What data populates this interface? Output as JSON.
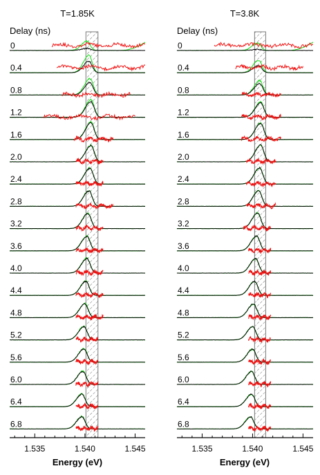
{
  "chart_data": [
    {
      "type": "line",
      "title": "T=1.85K",
      "xlabel": "Energy (eV)",
      "ylabel": "",
      "xlim": [
        1.5325,
        1.546
      ],
      "ylim": [
        0,
        1
      ],
      "x_ticks": [
        "1.535",
        "1.540",
        "1.545"
      ],
      "offset_label": "Delay (ns)",
      "delays": [
        "0",
        "0.4",
        "0.8",
        "1.2",
        "1.6",
        "2.0",
        "2.4",
        "2.8",
        "3.2",
        "3.6",
        "4.0",
        "4.4",
        "4.8",
        "5.2",
        "5.6",
        "6.0",
        "6.4",
        "6.8"
      ],
      "highlight_band": [
        1.5401,
        1.5413
      ],
      "peak_energy": [
        1.5402,
        1.5404,
        1.5405,
        1.5406,
        1.5406,
        1.5406,
        1.5405,
        1.5404,
        1.5403,
        1.5402,
        1.5402,
        1.5401,
        1.54,
        1.5399,
        1.5399,
        1.5398,
        1.5397,
        1.5397
      ],
      "peak_height": [
        0.1,
        0.55,
        0.6,
        0.75,
        0.8,
        0.78,
        0.76,
        0.74,
        0.72,
        0.7,
        0.7,
        0.68,
        0.66,
        0.64,
        0.64,
        0.62,
        0.6,
        0.58
      ],
      "green_height": [
        0.45,
        0.85,
        0.8,
        0.85,
        0.85,
        0.8,
        0.78,
        0.76,
        0.74,
        0.72,
        0.72,
        0.7,
        0.68,
        0.66,
        0.66,
        0.64,
        0.62,
        0.6
      ],
      "red_range": [
        [
          1.5367,
          1.546
        ],
        [
          1.5372,
          1.546
        ],
        [
          1.5377,
          1.5445
        ],
        [
          1.5359,
          1.545
        ],
        [
          1.5389,
          1.5428
        ],
        [
          1.5391,
          1.5418
        ],
        [
          1.5391,
          1.5418
        ],
        [
          1.5391,
          1.5428
        ],
        [
          1.5391,
          1.5418
        ],
        [
          1.5391,
          1.5418
        ],
        [
          1.5391,
          1.5418
        ],
        [
          1.5391,
          1.5418
        ],
        [
          1.5391,
          1.5418
        ],
        [
          1.5391,
          1.5413
        ],
        [
          1.5391,
          1.5413
        ],
        [
          1.5391,
          1.5413
        ],
        [
          1.5391,
          1.5413
        ],
        [
          1.5391,
          1.5413
        ]
      ],
      "series_colors": {
        "black": "#000000",
        "green": "#22dd22",
        "red": "#ee1111"
      }
    },
    {
      "type": "line",
      "title": "T=3.8K",
      "xlabel": "Energy (eV)",
      "ylabel": "",
      "xlim": [
        1.5325,
        1.546
      ],
      "ylim": [
        0,
        1
      ],
      "x_ticks": [
        "1.535",
        "1.540",
        "1.545"
      ],
      "offset_label": "Delay (ns)",
      "delays": [
        "0",
        "0.4",
        "0.8",
        "1.2",
        "1.6",
        "2.0",
        "2.4",
        "2.8",
        "3.2",
        "3.6",
        "4.0",
        "4.4",
        "4.8",
        "5.2",
        "5.6",
        "6.0",
        "6.4",
        "6.8"
      ],
      "highlight_band": [
        1.5402,
        1.5413
      ],
      "peak_energy": [
        1.5405,
        1.5406,
        1.5407,
        1.5408,
        1.5408,
        1.5408,
        1.5407,
        1.5406,
        1.5405,
        1.5404,
        1.5403,
        1.5402,
        1.5401,
        1.54,
        1.54,
        1.5399,
        1.5399,
        1.5398
      ],
      "peak_height": [
        0.05,
        0.35,
        0.55,
        0.7,
        0.78,
        0.8,
        0.78,
        0.76,
        0.75,
        0.72,
        0.7,
        0.68,
        0.66,
        0.64,
        0.62,
        0.62,
        0.6,
        0.58
      ],
      "green_height": [
        0.35,
        0.6,
        0.7,
        0.75,
        0.8,
        0.8,
        0.78,
        0.76,
        0.75,
        0.72,
        0.7,
        0.68,
        0.66,
        0.64,
        0.62,
        0.62,
        0.6,
        0.58
      ],
      "red_range": [
        [
          1.5362,
          1.546
        ],
        [
          1.5383,
          1.545
        ],
        [
          1.5389,
          1.5428
        ],
        [
          1.5389,
          1.5428
        ],
        [
          1.5389,
          1.5428
        ],
        [
          1.5394,
          1.5423
        ],
        [
          1.5394,
          1.5423
        ],
        [
          1.5394,
          1.5423
        ],
        [
          1.5391,
          1.5418
        ],
        [
          1.5396,
          1.5418
        ],
        [
          1.5396,
          1.5418
        ],
        [
          1.5396,
          1.5418
        ],
        [
          1.5396,
          1.5418
        ],
        [
          1.5396,
          1.5418
        ],
        [
          1.5396,
          1.5418
        ],
        [
          1.5396,
          1.5418
        ],
        [
          1.5396,
          1.5418
        ],
        [
          1.5396,
          1.5418
        ]
      ],
      "series_colors": {
        "black": "#000000",
        "green": "#22dd22",
        "red": "#ee1111"
      }
    }
  ]
}
